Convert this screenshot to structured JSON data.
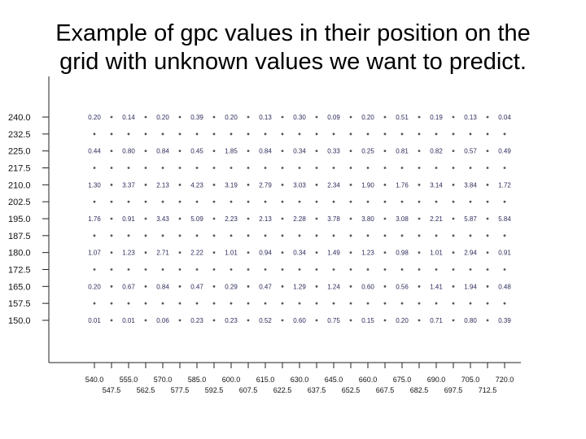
{
  "title_line1": "Example of gpc values in their position on the",
  "title_line2": "grid with unknown values we want to predict.",
  "chart_data": {
    "type": "scatter",
    "title": "Example of gpc values in their position on the grid with unknown values we want to predict.",
    "xlim": [
      540.0,
      720.0
    ],
    "ylim": [
      150.0,
      240.0
    ],
    "x_ticks": [
      "540.0",
      "547.5",
      "555.0",
      "562.5",
      "570.0",
      "577.5",
      "585.0",
      "592.5",
      "600.0",
      "607.5",
      "615.0",
      "622.5",
      "630.0",
      "637.5",
      "645.0",
      "652.5",
      "660.0",
      "667.5",
      "675.0",
      "682.5",
      "690.0",
      "697.5",
      "705.0",
      "712.5",
      "720.0"
    ],
    "y_ticks": [
      "240.0",
      "232.5",
      "225.0",
      "217.5",
      "210.0",
      "202.5",
      "195.0",
      "187.5",
      "180.0",
      "172.5",
      "165.0",
      "157.5",
      "150.0"
    ],
    "known_x": [
      540.0,
      555.0,
      570.0,
      585.0,
      600.0,
      615.0,
      630.0,
      645.0,
      660.0,
      675.0,
      690.0,
      705.0,
      720.0
    ],
    "rows": [
      {
        "y": 240.0,
        "values": [
          "0.20",
          "0.14",
          "0.20",
          "0.39",
          "0.20",
          "0.13",
          "0.30",
          "0.09",
          "0.20",
          "0.51",
          "0.19",
          "0.13",
          "0.04"
        ]
      },
      {
        "y": 225.0,
        "values": [
          "0.44",
          "0.80",
          "0.84",
          "0.45",
          "1.85",
          "0.84",
          "0.34",
          "0.33",
          "0.25",
          "0.81",
          "0.82",
          "0.57",
          "0.49"
        ]
      },
      {
        "y": 210.0,
        "values": [
          "1.30",
          "3.37",
          "2.13",
          "4.23",
          "3.19",
          "2.79",
          "3.03",
          "2.34",
          "1.90",
          "1.76",
          "3.14",
          "3.84",
          "1.72"
        ]
      },
      {
        "y": 195.0,
        "values": [
          "1.76",
          "0.91",
          "3.43",
          "5.09",
          "2.23",
          "2.13",
          "2.28",
          "3.78",
          "3.80",
          "3.08",
          "2.21",
          "5.87",
          "5.84"
        ]
      },
      {
        "y": 180.0,
        "values": [
          "1.07",
          "1.23",
          "2.71",
          "2.22",
          "1.01",
          "0.94",
          "0.34",
          "1.49",
          "1.23",
          "0.98",
          "1.01",
          "2.94",
          "0.91"
        ]
      },
      {
        "y": 165.0,
        "values": [
          "0.20",
          "0.67",
          "0.84",
          "0.47",
          "0.29",
          "0.47",
          "1.29",
          "1.24",
          "0.60",
          "0.56",
          "1.41",
          "1.94",
          "0.48"
        ]
      },
      {
        "y": 150.0,
        "values": [
          "0.01",
          "0.01",
          "0.06",
          "0.23",
          "0.23",
          "0.52",
          "0.60",
          "0.75",
          "0.15",
          "0.20",
          "0.71",
          "0.80",
          "0.39"
        ]
      }
    ],
    "unknown_points": "all other grid nodes at 7.5 spacing (shown as small dots)"
  }
}
